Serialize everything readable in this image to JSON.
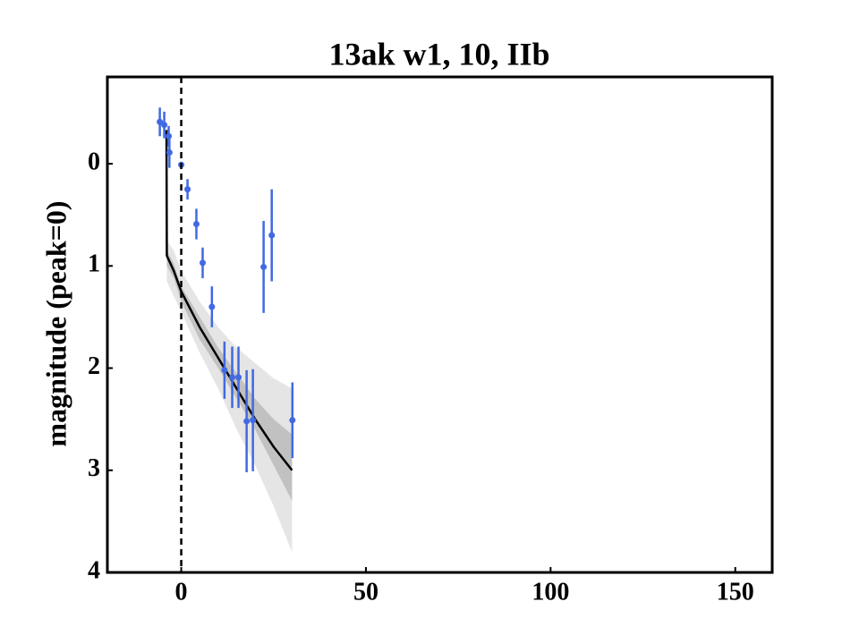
{
  "chart_data": {
    "type": "scatter",
    "title": "13ak w1, 10, IIb",
    "ylabel": "magnitude (peak=0)",
    "xlim": [
      -20,
      160
    ],
    "xticks": [
      0,
      50,
      100,
      150
    ],
    "ylim": [
      -0.85,
      4
    ],
    "yticks": [
      0,
      1,
      2,
      3,
      4
    ],
    "y_inverted": true,
    "vline": 0,
    "series": [
      {
        "name": "w1",
        "color": "#4169e1",
        "x": [
          -5.8,
          -4.6,
          -3.4,
          -3.2,
          0,
          1.7,
          4.1,
          5.8,
          8.3,
          11.7,
          13.8,
          15.5,
          17.7,
          19.4,
          22.3,
          24.5,
          30.1
        ],
        "values": [
          -0.41,
          -0.38,
          -0.27,
          -0.11,
          0.01,
          0.25,
          0.59,
          0.97,
          1.4,
          2.02,
          2.09,
          2.09,
          2.52,
          2.51,
          1.01,
          0.7,
          2.51
        ],
        "errors": [
          0.14,
          0.13,
          0.1,
          0.15,
          0.02,
          0.1,
          0.15,
          0.15,
          0.2,
          0.28,
          0.3,
          0.3,
          0.5,
          0.5,
          0.45,
          0.45,
          0.37
        ]
      }
    ],
    "model": {
      "color": "#000000",
      "x": [
        -4,
        -3.9,
        -2,
        0,
        5,
        10,
        15,
        20,
        25,
        30
      ],
      "values": [
        -0.33,
        0.9,
        1.05,
        1.25,
        1.6,
        1.9,
        2.2,
        2.5,
        2.77,
        3.0
      ],
      "outer_lower": [
        -0.6,
        0.75,
        0.85,
        1.05,
        1.35,
        1.6,
        1.8,
        1.95,
        2.1,
        2.2
      ],
      "outer_upper": [
        -0.25,
        1.15,
        1.3,
        1.45,
        1.85,
        2.2,
        2.6,
        2.95,
        3.35,
        3.8
      ],
      "inner_lower": [
        -0.45,
        0.85,
        0.98,
        1.2,
        1.5,
        1.8,
        2.05,
        2.3,
        2.5,
        2.65
      ],
      "inner_upper": [
        -0.3,
        1.0,
        1.12,
        1.35,
        1.72,
        2.0,
        2.3,
        2.6,
        2.95,
        3.3
      ]
    }
  }
}
